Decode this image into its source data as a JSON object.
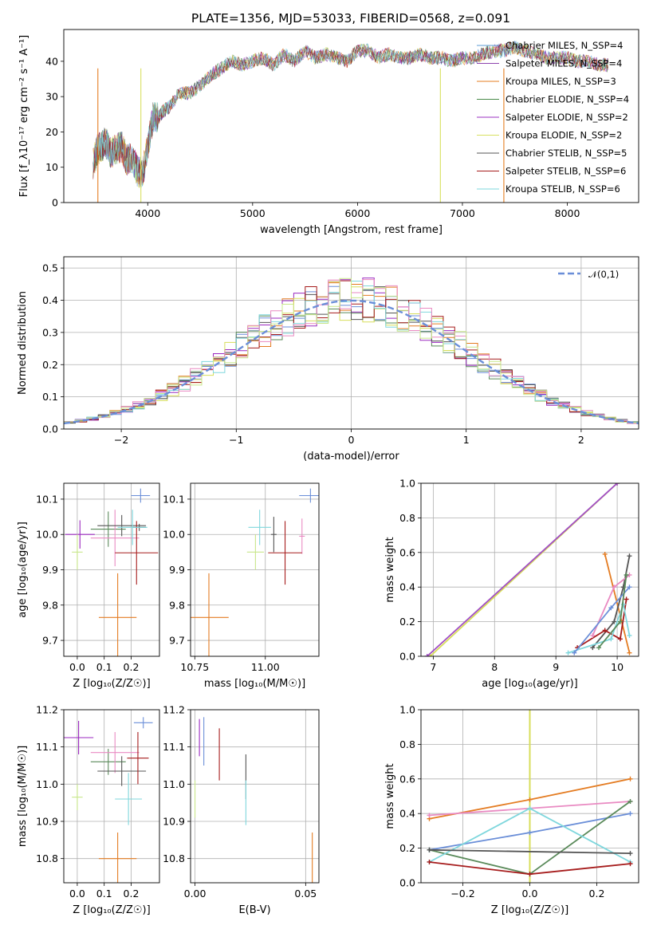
{
  "figure_title": "PLATE=1356, MJD=53033, FIBERID=0568, z=0.091",
  "colors": [
    "#6a8ed8",
    "#9b2ac0",
    "#e47c22",
    "#5a8a5a",
    "#a14ec6",
    "#d7de5a",
    "#555555",
    "#a61c1c",
    "#7fd7dd",
    "#e98ac2",
    "#c8e78a"
  ],
  "chart_data": [
    {
      "id": "spectrum",
      "type": "line",
      "xlabel": "wavelength [Angstrom, rest frame]",
      "ylabel": "Flux [f_λ10⁻¹⁷ erg cm⁻² s⁻¹ A⁻¹]",
      "xlim": [
        3200,
        8680
      ],
      "ylim": [
        0,
        49
      ],
      "xticks": [
        4000,
        5000,
        6000,
        7000,
        8000
      ],
      "yticks": [
        0,
        10,
        20,
        30,
        40
      ],
      "grid": false,
      "legend_position": "top-right",
      "series": [
        {
          "name": "Chabrier MILES, N_SSP=4",
          "color": "#5b9bd5"
        },
        {
          "name": "Salpeter MILES, N_SSP=4",
          "color": "#8e44ad"
        },
        {
          "name": "Kroupa MILES, N_SSP=3",
          "color": "#e67e22"
        },
        {
          "name": "Chabrier ELODIE, N_SSP=4",
          "color": "#4a8a4a"
        },
        {
          "name": "Salpeter ELODIE, N_SSP=2",
          "color": "#9b30c0"
        },
        {
          "name": "Kroupa ELODIE, N_SSP=2",
          "color": "#d8e060"
        },
        {
          "name": "Chabrier STELIB, N_SSP=5",
          "color": "#555555"
        },
        {
          "name": "Salpeter STELIB, N_SSP=6",
          "color": "#a61c1c"
        },
        {
          "name": "Kroupa STELIB, N_SSP=6",
          "color": "#7fd7dd"
        }
      ],
      "spectrum": {
        "x": [
          3480,
          3520,
          3560,
          3600,
          3650,
          3700,
          3750,
          3800,
          3850,
          3900,
          3950,
          4000,
          4050,
          4100,
          4150,
          4200,
          4300,
          4400,
          4500,
          4600,
          4700,
          4800,
          4900,
          5000,
          5100,
          5200,
          5300,
          5400,
          5500,
          5600,
          5700,
          5800,
          5900,
          6000,
          6100,
          6200,
          6300,
          6400,
          6500,
          6600,
          6700,
          6800,
          6900,
          7000,
          7100,
          7200,
          7300,
          7400,
          7500,
          7600,
          7700,
          7800,
          7900,
          8000,
          8100,
          8200,
          8300,
          8400
        ],
        "y": [
          11,
          15,
          16,
          17,
          14,
          15,
          16,
          12,
          13,
          9,
          8,
          16,
          24,
          24,
          26,
          27,
          31,
          31,
          33,
          36,
          38,
          40,
          39,
          40,
          41,
          39,
          42,
          40,
          43,
          41,
          42,
          41,
          40,
          43,
          43,
          41,
          42,
          41,
          41,
          42,
          41,
          41,
          40,
          41,
          41,
          42,
          43,
          43,
          44,
          43,
          42,
          41,
          41,
          41,
          40,
          40,
          39,
          39
        ]
      },
      "drop_lines": [
        {
          "x": 3935,
          "color": "#d8e060"
        },
        {
          "x": 6790,
          "color": "#d8e060"
        },
        {
          "x": 3525,
          "color": "#e67e22"
        },
        {
          "x": 7395,
          "color": "#e67e22"
        }
      ]
    },
    {
      "id": "residual-histogram",
      "type": "bar",
      "xlabel": "(data-model)/error",
      "ylabel": "Normed distribution",
      "xlim": [
        -2.5,
        2.5
      ],
      "ylim": [
        0,
        0.535
      ],
      "xticks": [
        -2,
        -1,
        0,
        1,
        2
      ],
      "yticks": [
        0.0,
        0.1,
        0.2,
        0.3,
        0.4,
        0.5
      ],
      "grid": true,
      "legend_position": "top-right",
      "legend": "𝒩(0,1)",
      "reference_curve": "gaussian",
      "bin_width": 0.1
    },
    {
      "id": "age-vs-Z",
      "type": "scatter",
      "xlabel": "Z [log₁₀(Z/Z☉)]",
      "ylabel": "age  [log₁₀(age/yr)]",
      "xlim": [
        -0.05,
        0.305
      ],
      "ylim": [
        9.655,
        10.145
      ],
      "xticks": [
        0.0,
        0.1,
        0.2
      ],
      "yticks": [
        9.7,
        9.8,
        9.9,
        10.0,
        10.1
      ],
      "grid": true,
      "points": [
        {
          "x": 0.235,
          "y": 10.11,
          "xerr": 0.035,
          "yerr": 0.02,
          "color": "#6a8ed8"
        },
        {
          "x": 0.01,
          "y": 10.0,
          "xerr": 0.055,
          "yerr": 0.04,
          "color": "#9b2ac0"
        },
        {
          "x": 0.15,
          "y": 9.765,
          "xerr": 0.07,
          "yerr": 0.125,
          "color": "#e47c22"
        },
        {
          "x": 0.115,
          "y": 10.015,
          "xerr": 0.065,
          "yerr": 0.05,
          "color": "#5a8a5a"
        },
        {
          "x": 0.14,
          "y": 9.99,
          "xerr": 0.09,
          "yerr": 0.08,
          "color": "#e98ac2"
        },
        {
          "x": 0.0,
          "y": 9.95,
          "xerr": 0.02,
          "yerr": 0.05,
          "color": "#c8e78a"
        },
        {
          "x": 0.165,
          "y": 10.025,
          "xerr": 0.09,
          "yerr": 0.03,
          "color": "#555555"
        },
        {
          "x": 0.23,
          "y": 10.02,
          "xerr": 0.025,
          "yerr": 0.01,
          "color": "#555555"
        },
        {
          "x": 0.22,
          "y": 9.948,
          "xerr": 0.08,
          "yerr": 0.09,
          "color": "#a61c1c"
        },
        {
          "x": 0.205,
          "y": 10.02,
          "xerr": 0.055,
          "yerr": 0.05,
          "color": "#7fd7dd"
        }
      ]
    },
    {
      "id": "age-vs-mass",
      "type": "scatter",
      "xlabel": "mass [log₁₀(M/M☉)]",
      "ylabel": "",
      "xlim": [
        10.735,
        11.19
      ],
      "ylim": [
        9.655,
        10.145
      ],
      "xticks": [
        10.75,
        11.0
      ],
      "tick_labels": [
        "10.75",
        "11.00"
      ],
      "yticks": [
        9.7,
        9.8,
        9.9,
        10.0,
        10.1
      ],
      "grid": true,
      "points": [
        {
          "x": 11.16,
          "y": 10.11,
          "xerr": 0.04,
          "yerr": 0.02,
          "color": "#6a8ed8"
        },
        {
          "x": 10.8,
          "y": 9.765,
          "xerr": 0.07,
          "yerr": 0.125,
          "color": "#e47c22"
        },
        {
          "x": 11.13,
          "y": 9.995,
          "xerr": 0.01,
          "yerr": 0.05,
          "color": "#e98ac2"
        },
        {
          "x": 10.965,
          "y": 9.95,
          "xerr": 0.03,
          "yerr": 0.05,
          "color": "#c8e78a"
        },
        {
          "x": 11.03,
          "y": 10.0,
          "xerr": 0.01,
          "yerr": 0.05,
          "color": "#555555"
        },
        {
          "x": 11.07,
          "y": 9.948,
          "xerr": 0.06,
          "yerr": 0.09,
          "color": "#a61c1c"
        },
        {
          "x": 10.98,
          "y": 10.02,
          "xerr": 0.04,
          "yerr": 0.05,
          "color": "#7fd7dd"
        }
      ]
    },
    {
      "id": "mass-weight-vs-age",
      "type": "line",
      "xlabel": "age  [log₁₀(age/yr)]",
      "ylabel": "mass weight",
      "xlim": [
        6.8,
        10.35
      ],
      "ylim": [
        0,
        1.0
      ],
      "xticks": [
        7,
        8,
        9,
        10
      ],
      "yticks": [
        0.0,
        0.2,
        0.4,
        0.6,
        0.8,
        1.0
      ],
      "grid": true,
      "series": [
        {
          "color": "#d7de5a",
          "x": [
            6.95,
            10.0
          ],
          "y": [
            0.0,
            1.0
          ]
        },
        {
          "color": "#a14ec6",
          "x": [
            6.9,
            10.0
          ],
          "y": [
            0.0,
            1.0
          ]
        },
        {
          "color": "#e47c22",
          "x": [
            9.8,
            10.2
          ],
          "y": [
            0.59,
            0.02
          ]
        },
        {
          "color": "#555555",
          "x": [
            9.6,
            9.95,
            10.1,
            10.2
          ],
          "y": [
            0.05,
            0.2,
            0.4,
            0.58
          ]
        },
        {
          "color": "#a61c1c",
          "x": [
            9.35,
            9.8,
            10.05,
            10.15
          ],
          "y": [
            0.05,
            0.15,
            0.1,
            0.33
          ]
        },
        {
          "color": "#7fd7dd",
          "x": [
            9.2,
            9.9,
            10.1,
            10.2
          ],
          "y": [
            0.02,
            0.1,
            0.3,
            0.12
          ]
        },
        {
          "color": "#e98ac2",
          "x": [
            9.6,
            9.95,
            10.2
          ],
          "y": [
            0.12,
            0.4,
            0.47
          ]
        },
        {
          "color": "#6a8ed8",
          "x": [
            9.3,
            9.9,
            10.2
          ],
          "y": [
            0.02,
            0.28,
            0.4
          ]
        },
        {
          "color": "#5a8a5a",
          "x": [
            9.7,
            10.05,
            10.15
          ],
          "y": [
            0.05,
            0.2,
            0.47
          ]
        }
      ]
    },
    {
      "id": "mass-vs-Z",
      "type": "scatter",
      "xlabel": "Z [log₁₀(Z/Z☉)]",
      "ylabel": "mass [log₁₀(M/M☉)]",
      "xlim": [
        -0.05,
        0.305
      ],
      "ylim": [
        10.735,
        11.2
      ],
      "xticks": [
        0.0,
        0.1,
        0.2
      ],
      "yticks": [
        10.8,
        10.9,
        11.0,
        11.1,
        11.2
      ],
      "grid": true,
      "points": [
        {
          "x": 0.245,
          "y": 11.165,
          "xerr": 0.035,
          "yerr": 0.015,
          "color": "#6a8ed8"
        },
        {
          "x": 0.005,
          "y": 11.125,
          "xerr": 0.055,
          "yerr": 0.045,
          "color": "#9b2ac0"
        },
        {
          "x": 0.15,
          "y": 10.8,
          "xerr": 0.07,
          "yerr": 0.07,
          "color": "#e47c22"
        },
        {
          "x": 0.115,
          "y": 11.06,
          "xerr": 0.065,
          "yerr": 0.035,
          "color": "#5a8a5a"
        },
        {
          "x": 0.14,
          "y": 11.085,
          "xerr": 0.09,
          "yerr": 0.055,
          "color": "#e98ac2"
        },
        {
          "x": 0.0,
          "y": 10.965,
          "xerr": 0.02,
          "yerr": 0.035,
          "color": "#c8e78a"
        },
        {
          "x": 0.165,
          "y": 11.035,
          "xerr": 0.09,
          "yerr": 0.04,
          "color": "#555555"
        },
        {
          "x": 0.225,
          "y": 11.07,
          "xerr": 0.04,
          "yerr": 0.07,
          "color": "#a61c1c"
        },
        {
          "x": 0.19,
          "y": 10.96,
          "xerr": 0.05,
          "yerr": 0.07,
          "color": "#7fd7dd"
        }
      ]
    },
    {
      "id": "mass-vs-EBV",
      "type": "scatter",
      "xlabel": "E(B-V)",
      "ylabel": "",
      "xlim": [
        -0.002,
        0.056
      ],
      "ylim": [
        10.735,
        11.2
      ],
      "xticks": [
        0.0,
        0.05
      ],
      "tick_labels": [
        "0.00",
        "0.05"
      ],
      "yticks": [
        10.8,
        10.9,
        11.0,
        11.1,
        11.2
      ],
      "grid": true,
      "points": [
        {
          "x": 0.004,
          "y": 11.115,
          "xerr": 0,
          "yerr": 0.065,
          "color": "#6a8ed8"
        },
        {
          "x": 0.002,
          "y": 11.125,
          "xerr": 0,
          "yerr": 0.05,
          "color": "#9b2ac0"
        },
        {
          "x": 0.053,
          "y": 10.78,
          "xerr": 0,
          "yerr": 0.09,
          "color": "#e47c22"
        },
        {
          "x": 0.0,
          "y": 10.96,
          "xerr": 0,
          "yerr": 0.05,
          "color": "#c8e78a"
        },
        {
          "x": 0.011,
          "y": 11.08,
          "xerr": 0,
          "yerr": 0.07,
          "color": "#a61c1c"
        },
        {
          "x": 0.023,
          "y": 11.02,
          "xerr": 0,
          "yerr": 0.06,
          "color": "#555555"
        },
        {
          "x": 0.023,
          "y": 10.95,
          "xerr": 0,
          "yerr": 0.06,
          "color": "#7fd7dd"
        }
      ]
    },
    {
      "id": "mass-weight-vs-Z",
      "type": "line",
      "xlabel": "Z [log₁₀(Z/Z☉)]",
      "ylabel": "mass weight",
      "xlim": [
        -0.325,
        0.325
      ],
      "ylim": [
        0,
        1.0
      ],
      "xticks": [
        -0.2,
        0.0,
        0.2
      ],
      "tick_labels": [
        "−0.2",
        "0.0",
        "0.2"
      ],
      "yticks": [
        0.0,
        0.2,
        0.4,
        0.6,
        0.8,
        1.0
      ],
      "grid": true,
      "vertical_lines": [
        {
          "x": 0.0,
          "color": "#d7de5a",
          "y": [
            0,
            1.0
          ]
        }
      ],
      "series": [
        {
          "color": "#e47c22",
          "x": [
            -0.3,
            0.0,
            0.3
          ],
          "y": [
            0.37,
            0.48,
            0.6
          ]
        },
        {
          "color": "#e98ac2",
          "x": [
            -0.3,
            0.3
          ],
          "y": [
            0.39,
            0.47
          ]
        },
        {
          "color": "#6a8ed8",
          "x": [
            -0.3,
            0.0,
            0.3
          ],
          "y": [
            0.19,
            0.29,
            0.4
          ]
        },
        {
          "color": "#5a8a5a",
          "x": [
            -0.3,
            0.0,
            0.3
          ],
          "y": [
            0.19,
            0.05,
            0.47
          ]
        },
        {
          "color": "#7fd7dd",
          "x": [
            -0.3,
            0.0,
            0.3
          ],
          "y": [
            0.12,
            0.43,
            0.12
          ]
        },
        {
          "color": "#555555",
          "x": [
            -0.3,
            0.3
          ],
          "y": [
            0.19,
            0.17
          ]
        },
        {
          "color": "#a61c1c",
          "x": [
            -0.3,
            0.0,
            0.3
          ],
          "y": [
            0.12,
            0.05,
            0.11
          ]
        }
      ]
    }
  ]
}
